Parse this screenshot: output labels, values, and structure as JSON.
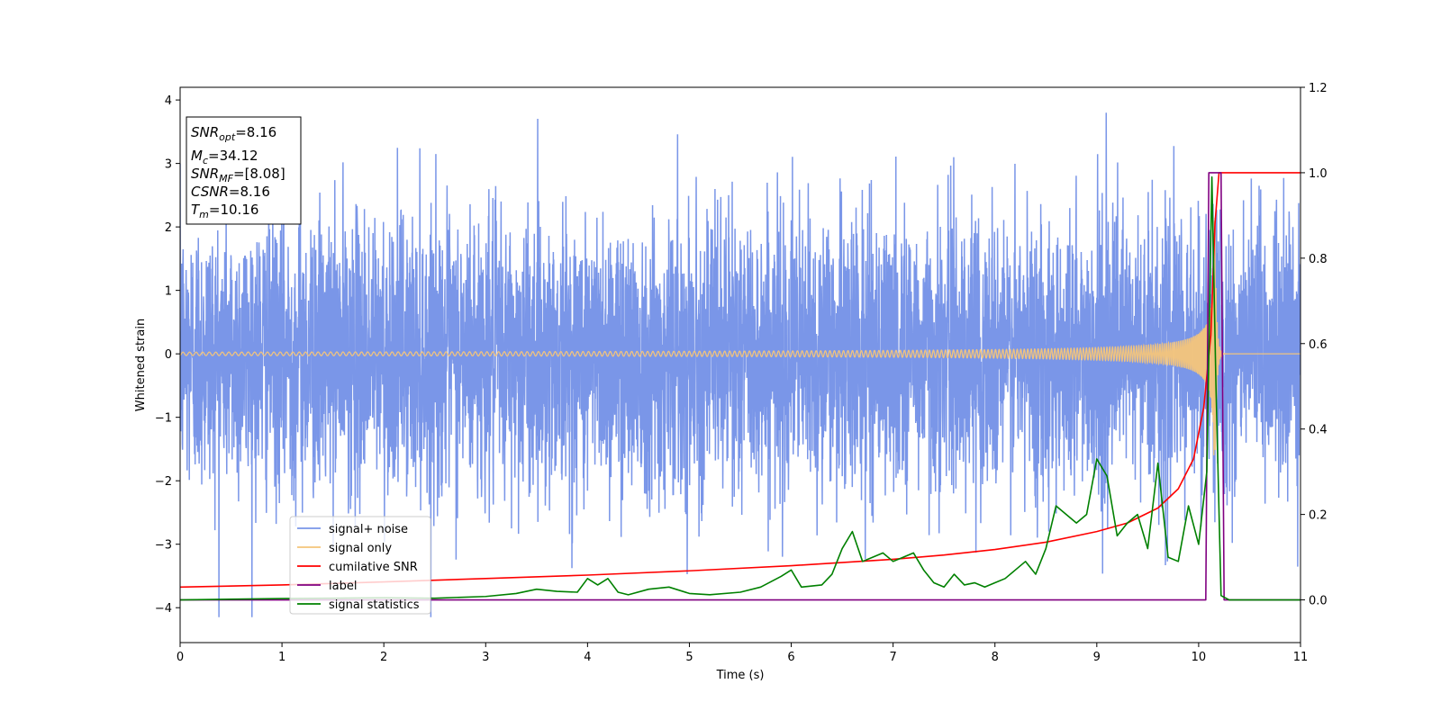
{
  "chart_data": {
    "type": "line",
    "title": "",
    "xlabel": "Time (s)",
    "ylabel": "Whitened strain",
    "xlim": [
      0,
      11
    ],
    "ylim": [
      -4.55,
      4.2
    ],
    "y2lim": [
      -0.1,
      1.2
    ],
    "xticks": [
      0,
      1,
      2,
      3,
      4,
      5,
      6,
      7,
      8,
      9,
      10,
      11
    ],
    "yticks": [
      -4,
      -3,
      -2,
      -1,
      0,
      1,
      2,
      3,
      4
    ],
    "y2ticks": [
      0.0,
      0.2,
      0.4,
      0.6,
      0.8,
      1.0,
      1.2
    ],
    "grid": false,
    "legend_position": "lower-left",
    "info_box": {
      "snr_opt": {
        "sym": "SNR",
        "sub": "opt",
        "value": "=8.16"
      },
      "mc": {
        "sym": "M",
        "sub": "c",
        "value": "=34.12"
      },
      "snr_mf": {
        "sym": "SNR",
        "sub": "MF",
        "value": "=[8.08]"
      },
      "csnr": {
        "sym": "CSNR",
        "sub": "",
        "value": "=8.16"
      },
      "tm": {
        "sym": "T",
        "sub": "m",
        "value": "=10.16"
      }
    },
    "series": [
      {
        "name": "signal+ noise",
        "axis": "left",
        "color": "#7a96e8",
        "description_envelope": {
          "std": 1.0,
          "x": [
            0,
            11
          ],
          "peak_max": 3.8,
          "peak_min": -4.15
        }
      },
      {
        "name": "signal only",
        "axis": "left",
        "color": "#f5c57a",
        "chirp": {
          "x_start": 0,
          "x_merger": 10.16,
          "amp_start": 0.03,
          "amp_peak": 2.2
        }
      },
      {
        "name": "cumilative SNR",
        "axis": "right",
        "color": "#ff0000",
        "x": [
          0,
          1,
          2,
          3,
          4,
          5,
          6,
          7,
          7.5,
          8,
          8.5,
          9,
          9.3,
          9.6,
          9.8,
          9.95,
          10.05,
          10.12,
          10.16,
          10.2,
          11
        ],
        "y": [
          0.03,
          0.035,
          0.042,
          0.05,
          0.058,
          0.068,
          0.08,
          0.095,
          0.105,
          0.118,
          0.135,
          0.16,
          0.18,
          0.215,
          0.26,
          0.33,
          0.45,
          0.62,
          0.88,
          1.0,
          1.0
        ]
      },
      {
        "name": "label",
        "axis": "right",
        "color": "#800080",
        "x": [
          0,
          10.07,
          10.1,
          10.22,
          10.25,
          11
        ],
        "y": [
          0,
          0,
          1.0,
          1.0,
          0,
          0
        ]
      },
      {
        "name": "signal statistics",
        "axis": "right",
        "color": "#008000",
        "x": [
          0,
          1,
          2,
          2.5,
          3,
          3.3,
          3.5,
          3.7,
          3.9,
          4.0,
          4.1,
          4.2,
          4.3,
          4.4,
          4.6,
          4.8,
          5.0,
          5.2,
          5.5,
          5.7,
          5.9,
          6.0,
          6.1,
          6.3,
          6.4,
          6.5,
          6.6,
          6.7,
          6.8,
          6.9,
          7.0,
          7.1,
          7.2,
          7.3,
          7.4,
          7.5,
          7.6,
          7.7,
          7.8,
          7.9,
          8.0,
          8.1,
          8.2,
          8.3,
          8.4,
          8.5,
          8.6,
          8.7,
          8.8,
          8.9,
          9.0,
          9.1,
          9.2,
          9.3,
          9.4,
          9.5,
          9.6,
          9.7,
          9.8,
          9.9,
          10.0,
          10.08,
          10.13,
          10.17,
          10.22,
          10.3,
          10.5,
          11
        ],
        "y": [
          0.0,
          0.003,
          0.005,
          0.004,
          0.008,
          0.015,
          0.025,
          0.02,
          0.018,
          0.05,
          0.035,
          0.05,
          0.018,
          0.012,
          0.025,
          0.03,
          0.015,
          0.012,
          0.018,
          0.03,
          0.055,
          0.07,
          0.03,
          0.035,
          0.06,
          0.12,
          0.16,
          0.09,
          0.1,
          0.11,
          0.09,
          0.1,
          0.11,
          0.07,
          0.04,
          0.03,
          0.06,
          0.035,
          0.04,
          0.03,
          0.04,
          0.05,
          0.07,
          0.09,
          0.06,
          0.12,
          0.22,
          0.2,
          0.18,
          0.2,
          0.33,
          0.29,
          0.15,
          0.18,
          0.2,
          0.12,
          0.32,
          0.1,
          0.09,
          0.22,
          0.13,
          0.3,
          0.99,
          0.5,
          0.01,
          0.0,
          0.0,
          0.0
        ]
      }
    ]
  }
}
